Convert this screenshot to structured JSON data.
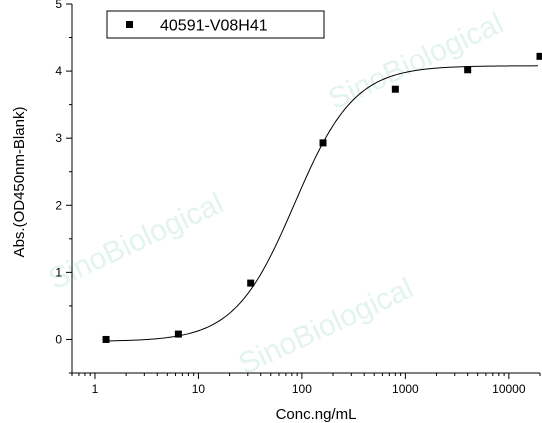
{
  "chart_data": {
    "type": "scatter",
    "xlabel": "Conc.ng/mL",
    "ylabel": "Abs.(OD450nm-Blank)",
    "x_scale": "log",
    "xlim": [
      0.6,
      20000
    ],
    "ylim": [
      -0.5,
      5
    ],
    "x_ticks": [
      1,
      10,
      100,
      1000,
      10000
    ],
    "x_tick_labels": [
      "1",
      "10",
      "100",
      "1000",
      "10000"
    ],
    "y_ticks": [
      0,
      1,
      2,
      3,
      4,
      5
    ],
    "y_tick_labels": [
      "0",
      "1",
      "2",
      "3",
      "4",
      "5"
    ],
    "grid": false,
    "legend_position": "top-left",
    "series": [
      {
        "name": "40591-V08H41",
        "marker": "square",
        "color": "#000000",
        "x": [
          1.28,
          6.4,
          32,
          160,
          800,
          4000,
          20000
        ],
        "y": [
          0.0,
          0.08,
          0.84,
          2.93,
          3.73,
          4.02,
          4.22
        ]
      }
    ],
    "fit_curve": {
      "type": "4PL",
      "bottom": -0.03,
      "top": 4.08,
      "ec50": 85,
      "hill": 1.5,
      "color": "#000000"
    },
    "watermark_text": "SinoBiological"
  }
}
